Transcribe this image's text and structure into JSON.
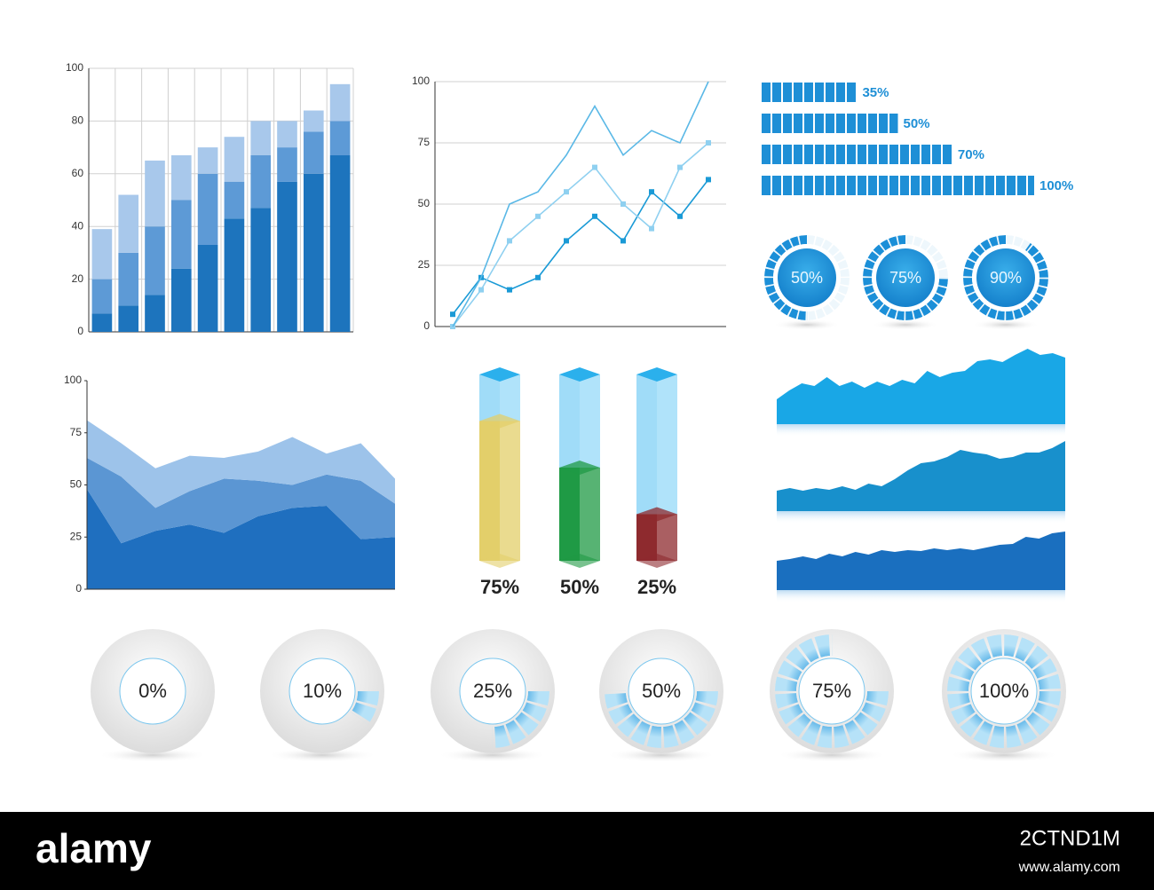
{
  "chart_data": [
    {
      "type": "stacked-bar",
      "categories": [
        null,
        null,
        null,
        null,
        null,
        null,
        null,
        null,
        null,
        null
      ],
      "series": [
        {
          "color": "#1d74bd",
          "values": [
            7,
            10,
            14,
            24,
            33,
            43,
            47,
            57,
            60,
            67
          ]
        },
        {
          "color": "#5d9ad6",
          "values": [
            13,
            20,
            26,
            26,
            27,
            14,
            20,
            13,
            16,
            13
          ]
        },
        {
          "color": "#a8c8eb",
          "values": [
            19,
            22,
            25,
            17,
            10,
            17,
            13,
            10,
            8,
            14
          ]
        }
      ],
      "ylim": [
        0,
        100
      ],
      "yticks": [
        0,
        20,
        40,
        60,
        80,
        100
      ],
      "grid": true
    },
    {
      "type": "line",
      "categories": [
        null,
        null,
        null,
        null,
        null,
        null,
        null,
        null,
        null,
        null
      ],
      "series": [
        {
          "color": "#1a9ad6",
          "markers": true,
          "values": [
            5,
            20,
            15,
            20,
            35,
            45,
            35,
            55,
            45,
            60
          ]
        },
        {
          "color": "#8fd0f0",
          "markers": true,
          "values": [
            0,
            15,
            35,
            45,
            55,
            65,
            50,
            40,
            65,
            75
          ]
        },
        {
          "color": "#5ab8e6",
          "markers": false,
          "values": [
            0,
            20,
            50,
            55,
            70,
            90,
            70,
            80,
            75,
            100
          ]
        }
      ],
      "ylim": [
        0,
        100
      ],
      "yticks": [
        0,
        25,
        50,
        75,
        100
      ],
      "grid": true
    },
    {
      "type": "progress-bar",
      "values": [
        35,
        50,
        70,
        100
      ],
      "value_labels": [
        "35%",
        "50%",
        "70%",
        "100%"
      ],
      "xlim": [
        0,
        100
      ],
      "color": "#1e8fd6"
    },
    {
      "type": "gauge",
      "style": "filled",
      "values": [
        50,
        75,
        90
      ],
      "value_labels": [
        "50%",
        "75%",
        "90%"
      ],
      "ylim": [
        0,
        100
      ],
      "color": "#1b8fd8"
    },
    {
      "type": "stacked-area",
      "categories": [
        null,
        null,
        null,
        null,
        null,
        null,
        null,
        null,
        null,
        null
      ],
      "series": [
        {
          "color": "#1f6fbf",
          "values": [
            48,
            22,
            28,
            31,
            27,
            35,
            39,
            40,
            24,
            25
          ]
        },
        {
          "color": "#5b96d3",
          "values": [
            15,
            32,
            11,
            16,
            26,
            17,
            11,
            15,
            28,
            16
          ]
        },
        {
          "color": "#9dc3ea",
          "values": [
            18,
            16,
            19,
            17,
            10,
            14,
            23,
            10,
            18,
            12
          ]
        }
      ],
      "ylim": [
        0,
        100
      ],
      "yticks": [
        0,
        25,
        50,
        75,
        100
      ],
      "grid": false
    },
    {
      "type": "tube",
      "values": [
        75,
        50,
        25
      ],
      "value_labels": [
        "75%",
        "50%",
        "25%"
      ],
      "colors": [
        "#e3cf6a",
        "#1f9a45",
        "#8e2a2e"
      ],
      "ylim": [
        0,
        100
      ]
    },
    {
      "type": "area",
      "color": "#19a7e6",
      "ylim": [
        0,
        100
      ],
      "values": [
        28,
        38,
        46,
        43,
        53,
        43,
        48,
        41,
        48,
        43,
        50,
        46,
        60,
        53,
        58,
        60,
        71,
        73,
        70,
        78,
        85,
        78,
        80,
        75
      ]
    },
    {
      "type": "area",
      "color": "#1890cc",
      "ylim": [
        0,
        100
      ],
      "values": [
        23,
        26,
        23,
        26,
        24,
        28,
        24,
        31,
        28,
        36,
        46,
        54,
        56,
        61,
        69,
        66,
        64,
        59,
        61,
        66,
        66,
        71,
        79
      ]
    },
    {
      "type": "area",
      "color": "#1a6fbf",
      "ylim": [
        0,
        100
      ],
      "values": [
        33,
        35,
        38,
        35,
        41,
        38,
        43,
        40,
        45,
        43,
        45,
        44,
        47,
        45,
        47,
        45,
        48,
        51,
        52,
        60,
        58,
        64,
        66
      ]
    },
    {
      "type": "gauge",
      "style": "ring",
      "values": [
        0,
        10,
        25,
        50,
        75,
        100
      ],
      "value_labels": [
        "0%",
        "10%",
        "25%",
        "50%",
        "75%",
        "100%"
      ],
      "ylim": [
        0,
        100
      ],
      "color": "#35a6e6"
    }
  ],
  "footer": {
    "brand": "alamy",
    "image_id": "2CTND1M",
    "url": "www.alamy.com"
  }
}
